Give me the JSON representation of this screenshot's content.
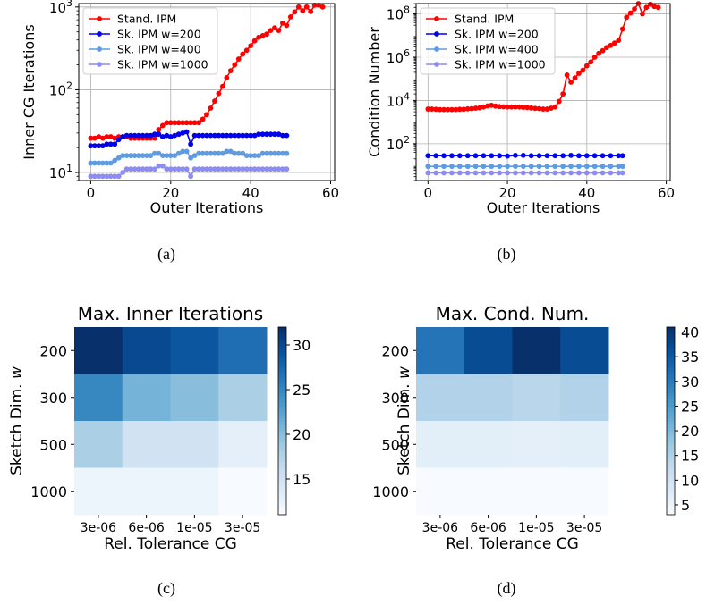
{
  "chart_data": [
    {
      "type": "line",
      "panel": "a",
      "caption": "(a)",
      "xlabel": "Outer Iterations",
      "ylabel": "Inner CG Iterations",
      "yscale": "log",
      "xlim": [
        -3,
        61
      ],
      "ylim": [
        8,
        1100
      ],
      "xticks": [
        0,
        20,
        40,
        60
      ],
      "yticks": [
        10,
        100,
        1000
      ],
      "ytick_labels": [
        "10^1",
        "10^2",
        "10^3"
      ],
      "grid": true,
      "legend": "top-left",
      "series": [
        {
          "name": "Stand. IPM",
          "color": "#ff0000",
          "x": [
            0,
            1,
            2,
            3,
            4,
            5,
            6,
            7,
            8,
            9,
            10,
            11,
            12,
            13,
            14,
            15,
            16,
            17,
            18,
            19,
            20,
            21,
            22,
            23,
            24,
            25,
            26,
            27,
            28,
            29,
            30,
            31,
            32,
            33,
            34,
            35,
            36,
            37,
            38,
            39,
            40,
            41,
            42,
            43,
            44,
            45,
            46,
            47,
            48,
            49,
            50,
            51,
            52,
            53,
            54,
            55,
            56,
            57,
            58
          ],
          "y": [
            26,
            26,
            27,
            26,
            27,
            27,
            26,
            27,
            27,
            27,
            26,
            26,
            26,
            26,
            26,
            26,
            26,
            33,
            37,
            40,
            40,
            40,
            40,
            40,
            40,
            40,
            40,
            40,
            44,
            50,
            60,
            73,
            90,
            110,
            140,
            170,
            200,
            235,
            270,
            300,
            340,
            390,
            430,
            450,
            470,
            520,
            560,
            520,
            640,
            600,
            760,
            870,
            1000,
            900,
            1000,
            880,
            1050,
            1050,
            1000
          ]
        },
        {
          "name": "Sk. IPM w=200",
          "color": "#0000ee",
          "x": [
            0,
            1,
            2,
            3,
            4,
            5,
            6,
            7,
            8,
            9,
            10,
            11,
            12,
            13,
            14,
            15,
            16,
            17,
            18,
            19,
            20,
            21,
            22,
            23,
            24,
            25,
            26,
            27,
            28,
            29,
            30,
            31,
            32,
            33,
            34,
            35,
            36,
            37,
            38,
            39,
            40,
            41,
            42,
            43,
            44,
            45,
            46,
            47,
            48,
            49
          ],
          "y": [
            21,
            21,
            21,
            21,
            22,
            22,
            22,
            25,
            27,
            28,
            28,
            28,
            28,
            28,
            28,
            28,
            29,
            29,
            27,
            28,
            27,
            28,
            29,
            30,
            31,
            22,
            28,
            28,
            28,
            28,
            28,
            28,
            28,
            28,
            28,
            28,
            28,
            28,
            28,
            28,
            28,
            28,
            29,
            29,
            29,
            29,
            29,
            29,
            28,
            28
          ]
        },
        {
          "name": "Sk. IPM w=400",
          "color": "#5e9be0",
          "x": [
            0,
            1,
            2,
            3,
            4,
            5,
            6,
            7,
            8,
            9,
            10,
            11,
            12,
            13,
            14,
            15,
            16,
            17,
            18,
            19,
            20,
            21,
            22,
            23,
            24,
            25,
            26,
            27,
            28,
            29,
            30,
            31,
            32,
            33,
            34,
            35,
            36,
            37,
            38,
            39,
            40,
            41,
            42,
            43,
            44,
            45,
            46,
            47,
            48,
            49
          ],
          "y": [
            13,
            13,
            13,
            13,
            13,
            13,
            14,
            15,
            16,
            16,
            16,
            16,
            16,
            16,
            16,
            16,
            17,
            17,
            16,
            16,
            16,
            16,
            17,
            18,
            18,
            15,
            16,
            17,
            17,
            17,
            17,
            17,
            17,
            17,
            18,
            18,
            17,
            17,
            17,
            16,
            16,
            16,
            16,
            17,
            17,
            17,
            17,
            17,
            17,
            17
          ]
        },
        {
          "name": "Sk. IPM w=1000",
          "color": "#8d8cf2",
          "x": [
            0,
            1,
            2,
            3,
            4,
            5,
            6,
            7,
            8,
            9,
            10,
            11,
            12,
            13,
            14,
            15,
            16,
            17,
            18,
            19,
            20,
            21,
            22,
            23,
            24,
            25,
            26,
            27,
            28,
            29,
            30,
            31,
            32,
            33,
            34,
            35,
            36,
            37,
            38,
            39,
            40,
            41,
            42,
            43,
            44,
            45,
            46,
            47,
            48,
            49
          ],
          "y": [
            9,
            9,
            9,
            9,
            9,
            9,
            9,
            9,
            10,
            11,
            11,
            11,
            11,
            11,
            11,
            11,
            11,
            12,
            12,
            11,
            11,
            11,
            11,
            11,
            11,
            9,
            11,
            11,
            11,
            11,
            11,
            11,
            11,
            11,
            11,
            11,
            11,
            11,
            11,
            11,
            11,
            11,
            11,
            11,
            11,
            11,
            11,
            11,
            11,
            11
          ]
        }
      ]
    },
    {
      "type": "line",
      "panel": "b",
      "caption": "(b)",
      "xlabel": "Outer Iterations",
      "ylabel": "Condition Number",
      "yscale": "log",
      "xlim": [
        -3,
        61
      ],
      "ylim": [
        2,
        300000000
      ],
      "xticks": [
        0,
        20,
        40,
        60
      ],
      "yticks": [
        100,
        10000,
        1000000,
        100000000
      ],
      "ytick_labels": [
        "10^2",
        "10^4",
        "10^6",
        "10^8"
      ],
      "grid": true,
      "legend": "top-left",
      "series": [
        {
          "name": "Stand. IPM",
          "color": "#ff0000",
          "x": [
            0,
            1,
            2,
            3,
            4,
            5,
            6,
            7,
            8,
            9,
            10,
            11,
            12,
            13,
            14,
            15,
            16,
            17,
            18,
            19,
            20,
            21,
            22,
            23,
            24,
            25,
            26,
            27,
            28,
            29,
            30,
            31,
            32,
            33,
            34,
            35,
            36,
            37,
            38,
            39,
            40,
            41,
            42,
            43,
            44,
            45,
            46,
            47,
            48,
            49,
            50,
            51,
            52,
            53,
            54,
            55,
            56,
            57,
            58
          ],
          "y": [
            4000,
            4000,
            3900,
            3800,
            3800,
            3800,
            3800,
            3800,
            3900,
            3900,
            4100,
            4200,
            4400,
            4600,
            5000,
            5600,
            6000,
            5500,
            5200,
            5100,
            5000,
            5000,
            5000,
            5000,
            4800,
            4700,
            4500,
            4300,
            4200,
            4000,
            4000,
            4400,
            5000,
            9000,
            20000,
            150000,
            70000,
            110000,
            180000,
            250000,
            400000,
            600000,
            1000000,
            1500000,
            2000000,
            2800000,
            3500000,
            4500000,
            6000000,
            20000000,
            70000000,
            110000000,
            170000000,
            300000000,
            100000000,
            200000000,
            280000000,
            220000000,
            200000000
          ]
        },
        {
          "name": "Sk. IPM w=200",
          "color": "#0000ee",
          "x": [
            0,
            2,
            4,
            6,
            8,
            10,
            12,
            14,
            16,
            18,
            20,
            22,
            24,
            26,
            28,
            30,
            32,
            34,
            36,
            38,
            40,
            42,
            44,
            46,
            48,
            49
          ],
          "y": [
            28,
            28,
            28,
            28,
            28,
            28,
            28,
            28,
            28,
            28,
            27,
            29,
            29,
            28,
            28,
            28,
            28,
            28,
            29,
            28,
            28,
            28,
            28,
            28,
            28,
            28
          ]
        },
        {
          "name": "Sk. IPM w=400",
          "color": "#5e9be0",
          "x": [
            0,
            2,
            4,
            6,
            8,
            10,
            12,
            14,
            16,
            18,
            20,
            22,
            24,
            26,
            28,
            30,
            32,
            34,
            36,
            38,
            40,
            42,
            44,
            46,
            48,
            49
          ],
          "y": [
            9,
            9,
            9,
            9,
            9,
            9,
            9,
            9,
            9,
            9,
            9,
            9,
            9,
            9,
            9,
            9,
            9,
            9,
            9,
            9,
            9,
            9,
            9,
            9,
            9,
            9
          ]
        },
        {
          "name": "Sk. IPM w=1000",
          "color": "#8d8cf2",
          "x": [
            0,
            2,
            4,
            6,
            8,
            10,
            12,
            14,
            16,
            18,
            20,
            22,
            24,
            26,
            28,
            30,
            32,
            34,
            36,
            38,
            40,
            42,
            44,
            46,
            48,
            49
          ],
          "y": [
            4.5,
            4.5,
            4.5,
            4.5,
            4.5,
            4.5,
            4.5,
            4.5,
            4.5,
            4.5,
            4.5,
            4.5,
            4.5,
            4.5,
            4.5,
            4.5,
            4.5,
            4.5,
            4.5,
            4.5,
            4.5,
            4.5,
            4.5,
            4.5,
            4.5,
            4.5
          ]
        }
      ]
    },
    {
      "type": "heatmap",
      "panel": "c",
      "caption": "(c)",
      "title": "Max. Inner Iterations",
      "xlabel": "Rel. Tolerance CG",
      "ylabel": "Sketch Dim. w",
      "x_categories": [
        "3e-06",
        "6e-06",
        "1e-05",
        "3e-05"
      ],
      "y_categories": [
        "200",
        "300",
        "500",
        "1000"
      ],
      "values": [
        [
          32,
          30,
          29,
          27
        ],
        [
          25,
          21,
          20,
          18
        ],
        [
          18,
          15,
          15,
          13
        ],
        [
          12,
          12,
          12,
          11
        ]
      ],
      "vmin": 11,
      "vmax": 32,
      "colorbar_ticks": [
        15,
        20,
        25,
        30
      ],
      "colormap": "Blues"
    },
    {
      "type": "heatmap",
      "panel": "d",
      "caption": "(d)",
      "title": "Max. Cond. Num.",
      "xlabel": "Rel. Tolerance CG",
      "ylabel": "Sketch Dim. w",
      "x_categories": [
        "3e-06",
        "6e-06",
        "1e-05",
        "3e-05"
      ],
      "y_categories": [
        "200",
        "300",
        "500",
        "1000"
      ],
      "values": [
        [
          31,
          37,
          41,
          37
        ],
        [
          15,
          15,
          14,
          15
        ],
        [
          7,
          7,
          6.5,
          7
        ],
        [
          3,
          3,
          3,
          3
        ]
      ],
      "vmin": 3,
      "vmax": 41,
      "colorbar_ticks": [
        5,
        10,
        15,
        20,
        25,
        30,
        35,
        40
      ],
      "colormap": "Blues"
    }
  ]
}
